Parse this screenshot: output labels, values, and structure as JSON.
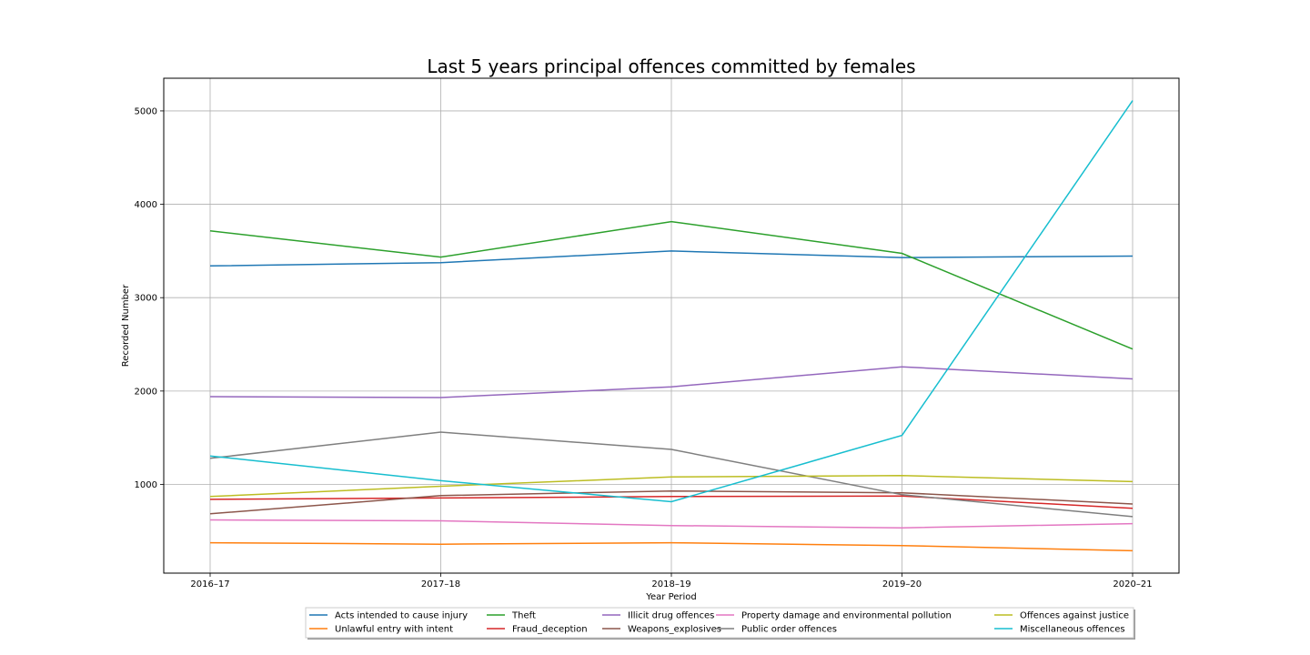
{
  "chart_data": {
    "type": "line",
    "title": "Last 5 years principal offences committed by females",
    "xlabel": "Year Period",
    "ylabel": "Recorded Number",
    "categories": [
      "2016–17",
      "2017–18",
      "2018–19",
      "2019–20",
      "2020–21"
    ],
    "yticks": [
      1000,
      2000,
      3000,
      4000,
      5000
    ],
    "ylim": [
      50,
      5350
    ],
    "grid": true,
    "legend_position": "bottom-center",
    "legend_columns": 5,
    "series": [
      {
        "name": "Acts intended to cause injury",
        "color": "#1f77b4",
        "values": [
          3340,
          3375,
          3500,
          3430,
          3445
        ]
      },
      {
        "name": "Unlawful entry with intent",
        "color": "#ff7f0e",
        "values": [
          375,
          360,
          375,
          345,
          290
        ]
      },
      {
        "name": "Theft",
        "color": "#2ca02c",
        "values": [
          3715,
          3435,
          3815,
          3475,
          2450
        ]
      },
      {
        "name": "Fraud_deception",
        "color": "#d62728",
        "values": [
          840,
          855,
          870,
          875,
          745
        ]
      },
      {
        "name": "Illicit drug offences",
        "color": "#9467bd",
        "values": [
          1940,
          1930,
          2045,
          2260,
          2130
        ]
      },
      {
        "name": "Weapons_explosives",
        "color": "#8c564b",
        "values": [
          685,
          880,
          930,
          910,
          790
        ]
      },
      {
        "name": "Property damage and environmental pollution",
        "color": "#e377c2",
        "values": [
          620,
          610,
          560,
          535,
          580
        ]
      },
      {
        "name": "Public order offences",
        "color": "#7f7f7f",
        "values": [
          1280,
          1560,
          1375,
          890,
          655
        ]
      },
      {
        "name": "Offences against justice",
        "color": "#bcbd22",
        "values": [
          870,
          980,
          1080,
          1095,
          1030
        ]
      },
      {
        "name": "Miscellaneous offences",
        "color": "#17becf",
        "values": [
          1305,
          1040,
          815,
          1525,
          5110
        ]
      }
    ]
  }
}
